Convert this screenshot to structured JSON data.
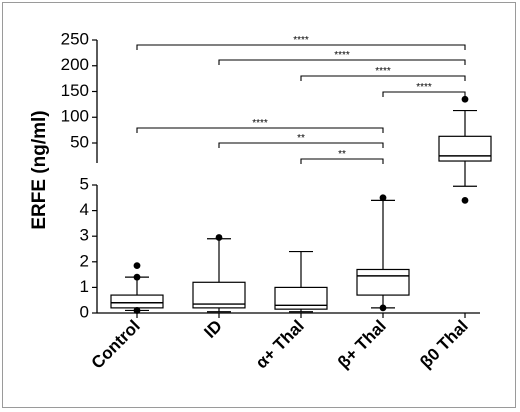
{
  "chart_data": {
    "type": "box",
    "ylabel": "ERFE (ng/ml)",
    "y_axis_segments": [
      {
        "name": "lower",
        "ylim": [
          0,
          5
        ],
        "ticks": [
          "0",
          "1",
          "2",
          "3",
          "4",
          "5"
        ]
      },
      {
        "name": "upper",
        "ylim": [
          5,
          250
        ],
        "ticks": [
          "50",
          "100",
          "150",
          "200",
          "250"
        ]
      }
    ],
    "categories": [
      "Control",
      "ID",
      "α+ Thal",
      "β+ Thal",
      "β0 Thal"
    ],
    "boxes": [
      {
        "category": "Control",
        "whisker_low": 0.1,
        "q1": 0.2,
        "median": 0.4,
        "q3": 0.7,
        "whisker_high": 1.4,
        "outliers_high": [
          1.85,
          1.4
        ],
        "outliers_low": [
          0.1
        ]
      },
      {
        "category": "ID",
        "whisker_low": 0.05,
        "q1": 0.2,
        "median": 0.35,
        "q3": 1.2,
        "whisker_high": 2.9,
        "outliers_high": [
          2.95
        ],
        "outliers_low": []
      },
      {
        "category": "α+ Thal",
        "whisker_low": 0.05,
        "q1": 0.15,
        "median": 0.3,
        "q3": 1.0,
        "whisker_high": 2.4,
        "outliers_high": [],
        "outliers_low": []
      },
      {
        "category": "β+ Thal",
        "whisker_low": 0.2,
        "q1": 0.7,
        "median": 1.45,
        "q3": 1.7,
        "whisker_high": 4.4,
        "outliers_high": [
          4.5
        ],
        "outliers_low": [
          0.2
        ]
      },
      {
        "category": "β0 Thal",
        "whisker_low": 4.95,
        "q1": 15,
        "median": 25,
        "q3": 63,
        "whisker_high": 113,
        "outliers_high": [
          135
        ],
        "outliers_low": [
          4.4
        ]
      }
    ],
    "comparisons": [
      {
        "from": "Control",
        "to": "β0 Thal",
        "label": "****"
      },
      {
        "from": "ID",
        "to": "β0 Thal",
        "label": "****"
      },
      {
        "from": "α+ Thal",
        "to": "β0 Thal",
        "label": "****"
      },
      {
        "from": "β+ Thal",
        "to": "β0 Thal",
        "label": "****"
      },
      {
        "from": "Control",
        "to": "β+ Thal",
        "label": "****"
      },
      {
        "from": "ID",
        "to": "β+ Thal",
        "label": "**"
      },
      {
        "from": "α+ Thal",
        "to": "β+ Thal",
        "label": "**"
      }
    ],
    "grid": false,
    "legend": "none"
  }
}
